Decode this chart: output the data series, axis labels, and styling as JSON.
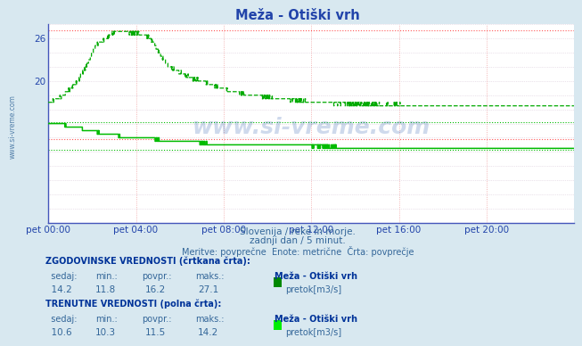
{
  "title": "Meža - Otiški vrh",
  "title_color": "#2244aa",
  "bg_color": "#d8e8f0",
  "plot_bg_color": "#ffffff",
  "vgrid_color": "#e08080",
  "hgrid_color": "#d0c0d0",
  "ylim": [
    0,
    28
  ],
  "xlabel_color": "#336699",
  "xtick_labels": [
    "pet 00:00",
    "pet 04:00",
    "pet 08:00",
    "pet 12:00",
    "pet 16:00",
    "pet 20:00"
  ],
  "xtick_positions": [
    0,
    288,
    576,
    864,
    1152,
    1440
  ],
  "total_points": 1728,
  "dashed_color": "#00aa00",
  "solid_color": "#00bb00",
  "hist_min": 11.8,
  "hist_max": 27.1,
  "hist_avg": 16.2,
  "hist_current": 14.2,
  "curr_min": 10.3,
  "curr_max": 14.2,
  "curr_avg": 11.5,
  "curr_current": 10.6,
  "watermark": "www.si-vreme.com",
  "subtitle1": "Slovenija / reke in morje.",
  "subtitle2": "zadnji dan / 5 minut.",
  "subtitle3": "Meritve: povprečne  Enote: metrične  Črta: povprečje",
  "footer_color": "#336699",
  "legend_label_hist": "pretok[m3/s]",
  "legend_label_curr": "pretok[m3/s]",
  "legend_color_hist": "#008800",
  "legend_color_curr": "#00ee00",
  "label_hist_title": "Meža - Otiški vrh",
  "label_curr_title": "Meža - Otiški vrh"
}
